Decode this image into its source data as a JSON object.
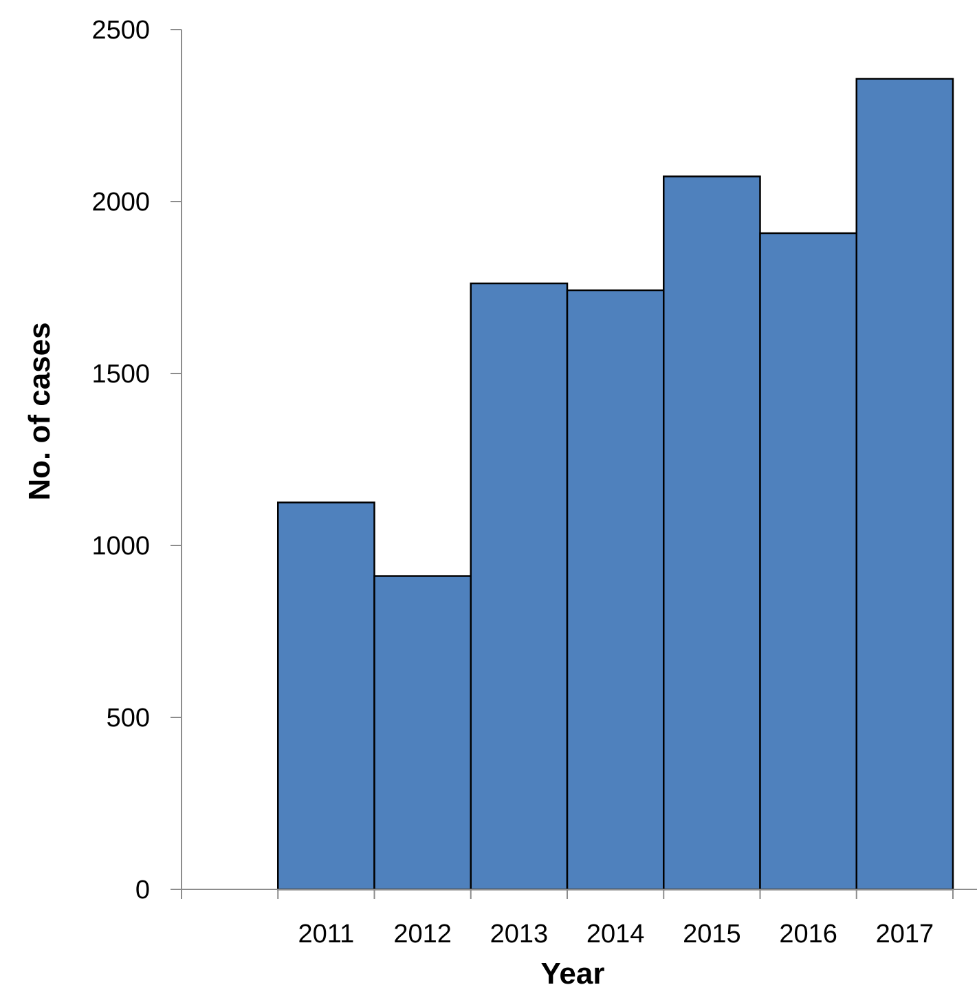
{
  "chart_data": {
    "type": "bar",
    "categories": [
      "",
      "2011",
      "2012",
      "2013",
      "2014",
      "2015",
      "2016",
      "2017"
    ],
    "values": [
      0,
      1125,
      911,
      1762,
      1742,
      2073,
      1908,
      2357
    ],
    "xlabel": "Year",
    "ylabel": "No. of cases",
    "ylim": [
      0,
      2500
    ],
    "yticks": [
      0,
      500,
      1000,
      1500,
      2000,
      2500
    ],
    "grid": false,
    "legend": "none",
    "bar_color": "#4f81bd",
    "bar_edge_color": "#000000",
    "axis_color": "#8c8c8c"
  }
}
